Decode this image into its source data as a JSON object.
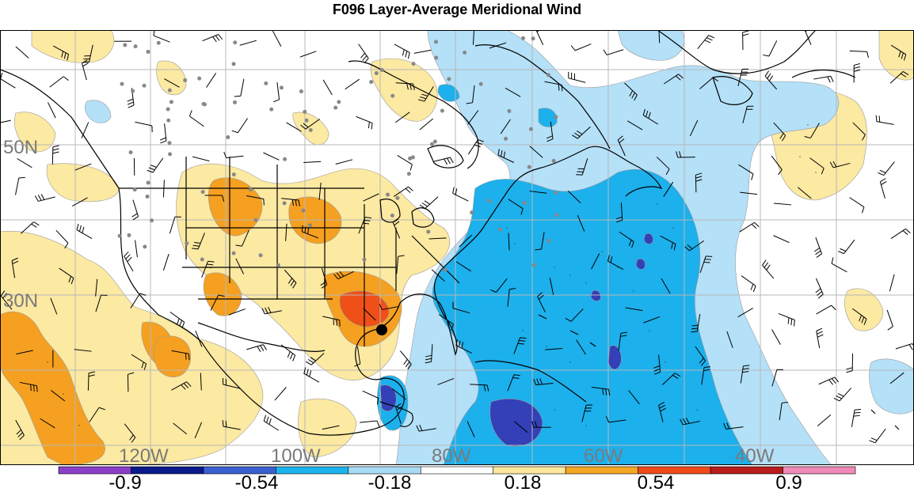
{
  "title": "F096 Layer-Average Meridional Wind",
  "lat_labels": [
    "50N",
    "30N"
  ],
  "lon_labels": [
    "120W",
    "100W",
    "80W",
    "60W",
    "40W"
  ],
  "colorbar": {
    "tick_labels": [
      "-0.9",
      "-0.54",
      "-0.18",
      "0.18",
      "0.54",
      "0.9"
    ],
    "colors": [
      "#8a3fc8",
      "#0a1a8a",
      "#3a5fd0",
      "#1cb4ee",
      "#a8dcf5",
      "#ffffff",
      "#fce79a",
      "#f5a623",
      "#ee4a1a",
      "#b81c1c",
      "#f08ab8"
    ]
  },
  "shading_colors": {
    "neg_light": "#b4e0f8",
    "neg_mid": "#1cb0ec",
    "neg_dark": "#3a5fd0",
    "neg_darkest": "#3340b8",
    "pos_light": "#fce9a2",
    "pos_mid": "#f5a020",
    "pos_dark": "#ee5018"
  },
  "marker": "storm-center-dot"
}
